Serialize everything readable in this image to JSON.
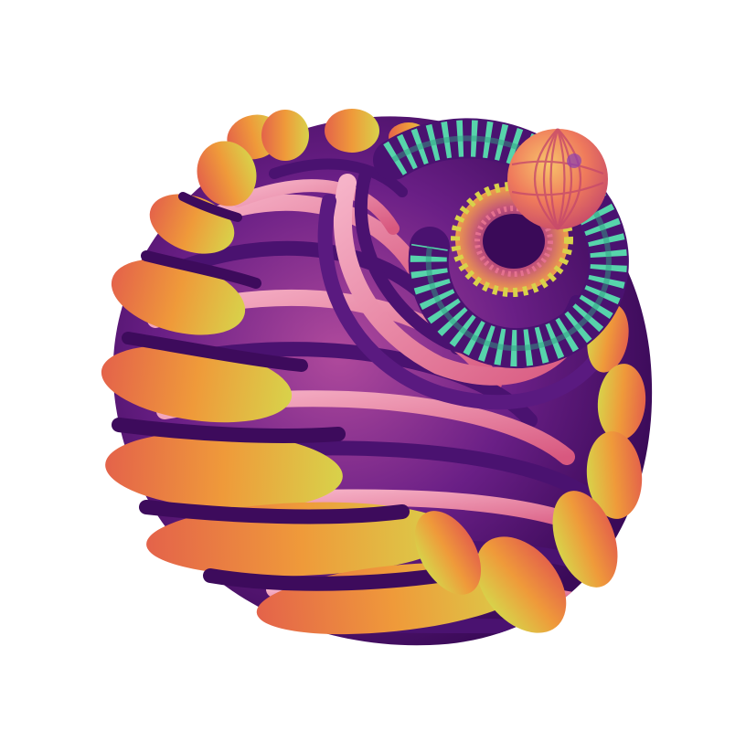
{
  "scene": {
    "subject": "spiral-sculpture",
    "background_color": "#ffffff",
    "palette": {
      "outer_band_light": "#d8d24a",
      "outer_band_mid": "#ef9a3a",
      "outer_band_dark": "#e4634a",
      "purple_dark": "#3d0b5c",
      "purple_mid": "#5a1a80",
      "purple_light": "#8a3fb0",
      "pink_light": "#f4a3bd",
      "pink_mid": "#e5718f",
      "teal": "#57d4ab",
      "teal_dark": "#2f9d82",
      "orb_light": "#f8c56a",
      "orb_mid": "#ef7a5c",
      "orb_dark": "#c74a6a"
    }
  }
}
